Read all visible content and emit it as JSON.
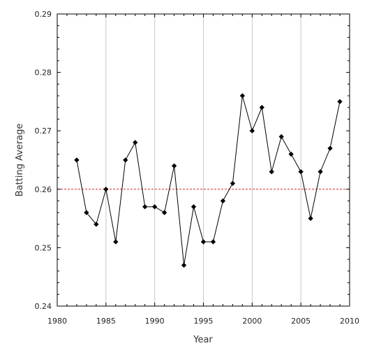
{
  "chart_data": {
    "type": "line",
    "title": "",
    "xlabel": "Year",
    "ylabel": "Batting Average",
    "xlim": [
      1980,
      2010
    ],
    "ylim": [
      0.24,
      0.29
    ],
    "x_ticks": [
      1980,
      1985,
      1990,
      1995,
      2000,
      2005,
      2010
    ],
    "y_ticks": [
      0.24,
      0.25,
      0.26,
      0.27,
      0.28,
      0.29
    ],
    "x_tick_labels": [
      "1980",
      "1985",
      "1990",
      "1995",
      "2000",
      "2005",
      "2010"
    ],
    "y_tick_labels": [
      "0.24",
      "0.25",
      "0.26",
      "0.27",
      "0.28",
      "0.29"
    ],
    "vertical_grid": true,
    "horizontal_grid": false,
    "reference_line": {
      "y": 0.26,
      "style": "dashed",
      "color": "#d62728"
    },
    "series": [
      {
        "color": "#000000",
        "marker": "diamond",
        "x": [
          1982,
          1983,
          1984,
          1985,
          1986,
          1987,
          1988,
          1989,
          1990,
          1991,
          1992,
          1993,
          1994,
          1995,
          1996,
          1997,
          1998,
          1999,
          2000,
          2001,
          2002,
          2003,
          2004,
          2005,
          2006,
          2007,
          2008,
          2009
        ],
        "y": [
          0.265,
          0.256,
          0.254,
          0.26,
          0.251,
          0.265,
          0.268,
          0.257,
          0.257,
          0.256,
          0.264,
          0.247,
          0.257,
          0.251,
          0.251,
          0.258,
          0.261,
          0.276,
          0.27,
          0.274,
          0.263,
          0.269,
          0.266,
          0.263,
          0.255,
          0.263,
          0.267,
          0.275
        ]
      }
    ]
  }
}
